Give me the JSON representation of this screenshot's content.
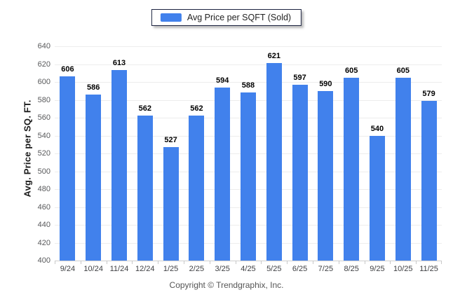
{
  "legend": {
    "label": "Avg Price per SQFT (Sold)"
  },
  "footer": {
    "copyright": "Copyright © Trendgraphix, Inc."
  },
  "colors": {
    "bar": "#4181ec",
    "grid": "#ededed",
    "axis_line": "#cfcfcf",
    "value_label": "#000000",
    "tick_label": "#58595b"
  },
  "chart_data": {
    "type": "bar",
    "title": "Avg Price per SQFT (Sold)",
    "categories": [
      "9/24",
      "10/24",
      "11/24",
      "12/24",
      "1/25",
      "2/25",
      "3/25",
      "4/25",
      "5/25",
      "6/25",
      "7/25",
      "8/25",
      "9/25",
      "10/25",
      "11/25"
    ],
    "values": [
      606,
      586,
      613,
      562,
      527,
      562,
      594,
      588,
      621,
      597,
      590,
      605,
      540,
      605,
      579
    ],
    "xlabel": "",
    "ylabel": "Avg. Price per SQ. FT.",
    "ylim": [
      400,
      640
    ],
    "yticks": [
      400,
      420,
      440,
      460,
      480,
      500,
      520,
      540,
      560,
      580,
      600,
      620,
      640
    ],
    "grid": "horizontal",
    "legend_position": "top-center",
    "value_labels": true
  }
}
